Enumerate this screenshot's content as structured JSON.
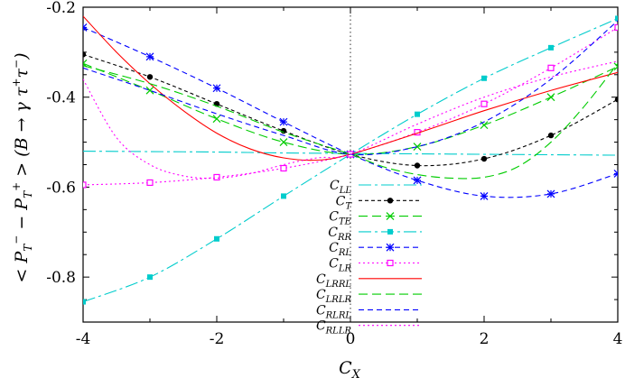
{
  "chart_data": {
    "type": "line",
    "xlabel": "C_X",
    "ylabel": "< P_T^- - P_T^+ > (B → γ τ^+ τ^-)",
    "xlim": [
      -4,
      4
    ],
    "ylim": [
      -0.9,
      -0.2
    ],
    "x_ticks": [
      -4,
      -2,
      0,
      2,
      4
    ],
    "x_tick_labels": [
      "-4",
      "-2",
      "0",
      "2",
      "4"
    ],
    "y_ticks": [
      -0.8,
      -0.6,
      -0.4,
      -0.2
    ],
    "y_tick_labels": [
      "-0.8",
      "-0.6",
      "-0.4",
      "-0.2"
    ],
    "grid": false,
    "legend_position": "center-bottom",
    "series": [
      {
        "name": "C_LL",
        "label_base": "C",
        "label_sub": "LL",
        "color": "#00cccc",
        "dash": "14 4 3 4",
        "marker": "none",
        "x": [
          -4,
          -3,
          -2,
          -1,
          0,
          1,
          2,
          3,
          4
        ],
        "y": [
          -0.52,
          -0.521,
          -0.522,
          -0.524,
          -0.525,
          -0.526,
          -0.527,
          -0.528,
          -0.529
        ]
      },
      {
        "name": "C_T",
        "label_base": "C",
        "label_sub": "T",
        "color": "#000000",
        "dash": "4 3",
        "marker": "dot",
        "x": [
          -4,
          -3,
          -2,
          -1,
          0,
          1,
          2,
          3,
          4
        ],
        "y": [
          -0.305,
          -0.355,
          -0.415,
          -0.475,
          -0.527,
          -0.552,
          -0.537,
          -0.485,
          -0.405
        ]
      },
      {
        "name": "C_TE",
        "label_base": "C",
        "label_sub": "TE",
        "color": "#00cc00",
        "dash": "10 5",
        "marker": "cross",
        "x": [
          -4,
          -3,
          -2,
          -1,
          0,
          1,
          2,
          3,
          4
        ],
        "y": [
          -0.325,
          -0.385,
          -0.448,
          -0.5,
          -0.527,
          -0.51,
          -0.462,
          -0.4,
          -0.332
        ]
      },
      {
        "name": "C_RR",
        "label_base": "C",
        "label_sub": "RR",
        "color": "#00cccc",
        "dash": "14 4 3 4",
        "marker": "filled-square",
        "x": [
          -4,
          -3,
          -2,
          -1,
          0,
          1,
          2,
          3,
          4
        ],
        "y": [
          -0.855,
          -0.8,
          -0.715,
          -0.62,
          -0.527,
          -0.438,
          -0.358,
          -0.29,
          -0.225
        ]
      },
      {
        "name": "C_RL",
        "label_base": "C",
        "label_sub": "RL",
        "color": "#0000ff",
        "dash": "6 4",
        "marker": "star",
        "x": [
          -4,
          -3,
          -2,
          -1,
          0,
          1,
          2,
          3,
          4
        ],
        "y": [
          -0.245,
          -0.31,
          -0.38,
          -0.455,
          -0.527,
          -0.585,
          -0.62,
          -0.615,
          -0.57
        ]
      },
      {
        "name": "C_LR",
        "label_base": "C",
        "label_sub": "LR",
        "color": "#ff00ff",
        "dash": "2 3",
        "marker": "open-square",
        "x": [
          -4,
          -3,
          -2,
          -1,
          0,
          1,
          2,
          3,
          4
        ],
        "y": [
          -0.595,
          -0.59,
          -0.578,
          -0.558,
          -0.527,
          -0.478,
          -0.415,
          -0.335,
          -0.245
        ]
      },
      {
        "name": "C_LRRL",
        "label_base": "C",
        "label_sub": "LRRL",
        "color": "#ff0000",
        "dash": "",
        "marker": "none",
        "x": [
          -4,
          -3.5,
          -3,
          -2.5,
          -2,
          -1.5,
          -1,
          -0.5,
          0,
          1,
          2,
          3,
          4
        ],
        "y": [
          -0.22,
          -0.3,
          -0.37,
          -0.43,
          -0.48,
          -0.515,
          -0.535,
          -0.54,
          -0.527,
          -0.48,
          -0.43,
          -0.385,
          -0.345
        ]
      },
      {
        "name": "C_LRLR",
        "label_base": "C",
        "label_sub": "LRLR",
        "color": "#00cc00",
        "dash": "10 5",
        "marker": "none",
        "x": [
          -4,
          -3,
          -2,
          -1,
          0,
          0.5,
          1,
          1.5,
          2,
          2.5,
          3,
          3.5,
          4
        ],
        "y": [
          -0.33,
          -0.37,
          -0.42,
          -0.478,
          -0.527,
          -0.555,
          -0.572,
          -0.58,
          -0.578,
          -0.555,
          -0.5,
          -0.42,
          -0.325
        ]
      },
      {
        "name": "C_RLRL",
        "label_base": "C",
        "label_sub": "RLRL",
        "color": "#0000ff",
        "dash": "6 4",
        "marker": "none",
        "x": [
          -4,
          -3,
          -2,
          -1,
          0,
          1,
          2,
          3,
          4
        ],
        "y": [
          -0.335,
          -0.385,
          -0.437,
          -0.485,
          -0.527,
          -0.51,
          -0.455,
          -0.36,
          -0.23
        ]
      },
      {
        "name": "C_RLLR",
        "label_base": "C",
        "label_sub": "RLLR",
        "color": "#ff00ff",
        "dash": "2 3",
        "marker": "none",
        "x": [
          -4,
          -3.5,
          -3,
          -2.5,
          -2,
          -1.5,
          -1,
          -0.5,
          0,
          1,
          2,
          3,
          4
        ],
        "y": [
          -0.36,
          -0.49,
          -0.55,
          -0.575,
          -0.58,
          -0.57,
          -0.55,
          -0.535,
          -0.527,
          -0.46,
          -0.4,
          -0.355,
          -0.32
        ]
      }
    ]
  }
}
